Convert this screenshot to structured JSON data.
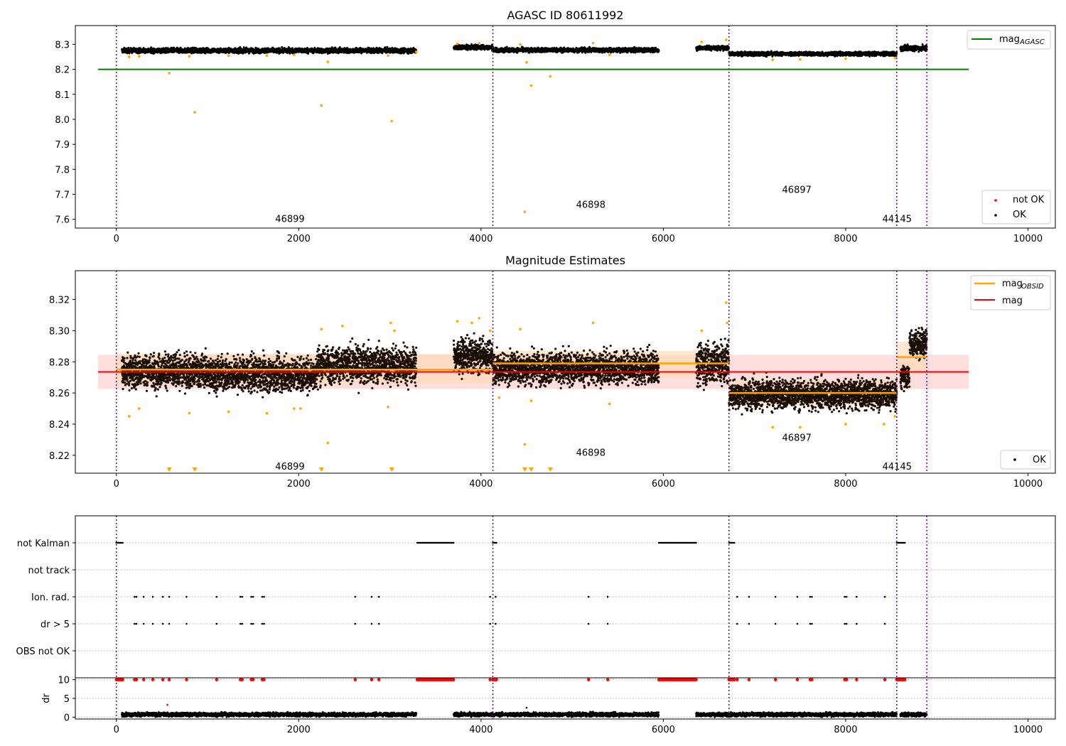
{
  "colors": {
    "ok": "#000000",
    "not_ok": "#ff0000",
    "orange": "#ffa500",
    "green": "#008000",
    "red": "#ff0000",
    "purple": "#800080",
    "band_red": "#ffd6d6",
    "band_orange": "#ffd9b0",
    "grid": "#b0b0b0"
  },
  "chart_data": [
    {
      "type": "scatter",
      "title": "AGASC ID 80611992",
      "xlim": [
        -450,
        10300
      ],
      "ylim": [
        7.565,
        8.375
      ],
      "x_ticks": [
        0,
        2000,
        4000,
        6000,
        8000,
        10000
      ],
      "x_tick_labels": [
        "0",
        "2000",
        "4000",
        "6000",
        "8000",
        "10000"
      ],
      "y_ticks": [
        7.6,
        7.7,
        7.8,
        7.9,
        8.0,
        8.1,
        8.2,
        8.3
      ],
      "y_tick_labels": [
        "7.6",
        "7.7",
        "7.8",
        "7.9",
        "8.0",
        "8.1",
        "8.2",
        "8.3"
      ],
      "obs_boundaries": [
        0,
        4130,
        6720,
        8560,
        8890
      ],
      "obs_labels": [
        {
          "text": "46899",
          "x": 2060,
          "y": 7.6
        },
        {
          "text": "46898",
          "x": 5360,
          "y": 7.658
        },
        {
          "text": "46897",
          "x": 7620,
          "y": 7.717
        },
        {
          "text": "44145",
          "x": 8720,
          "y": 7.6
        }
      ],
      "segments": [
        {
          "x": [
            60,
            3290
          ],
          "mean": 8.275,
          "spread": 0.012
        },
        {
          "x": [
            3700,
            4130
          ],
          "mean": 8.288,
          "spread": 0.012
        },
        {
          "x": [
            4130,
            5950
          ],
          "mean": 8.277,
          "spread": 0.011
        },
        {
          "x": [
            6360,
            6720
          ],
          "mean": 8.285,
          "spread": 0.011
        },
        {
          "x": [
            6720,
            8560
          ],
          "mean": 8.262,
          "spread": 0.01
        },
        {
          "x": [
            8600,
            8890
          ],
          "mean": 8.285,
          "spread": 0.014
        }
      ],
      "hlines": [
        {
          "name": "mag_AGASC",
          "y": 8.2,
          "x": [
            -200,
            9350
          ],
          "color": "#008000"
        }
      ],
      "orange_points": [
        [
          580,
          8.185
        ],
        [
          860,
          8.028
        ],
        [
          2250,
          8.055
        ],
        [
          2320,
          8.23
        ],
        [
          3020,
          7.993
        ],
        [
          4480,
          7.63
        ],
        [
          4500,
          8.228
        ],
        [
          4550,
          8.135
        ],
        [
          4760,
          8.172
        ],
        [
          140,
          8.25
        ],
        [
          250,
          8.252
        ],
        [
          800,
          8.252
        ],
        [
          1230,
          8.255
        ],
        [
          1650,
          8.255
        ],
        [
          1950,
          8.258
        ],
        [
          2980,
          8.255
        ],
        [
          3290,
          8.27
        ],
        [
          3740,
          8.302
        ],
        [
          3980,
          8.305
        ],
        [
          4430,
          8.3
        ],
        [
          5230,
          8.305
        ],
        [
          5410,
          8.258
        ],
        [
          6420,
          8.31
        ],
        [
          6690,
          8.318
        ],
        [
          7200,
          8.238
        ],
        [
          7500,
          8.24
        ],
        [
          8000,
          8.242
        ],
        [
          8540,
          8.245
        ]
      ],
      "legend_top": {
        "items": [
          {
            "label": "mag",
            "sub": "AGASC",
            "color": "#008000"
          }
        ],
        "placement": "top-right"
      },
      "legend_bottom": {
        "items": [
          {
            "label": "not OK",
            "color": "#ff0000"
          },
          {
            "label": "OK",
            "color": "#000000"
          }
        ],
        "placement": "bottom-right"
      }
    },
    {
      "type": "scatter",
      "title": "Magnitude Estimates",
      "xlim": [
        -450,
        10300
      ],
      "ylim": [
        8.2085,
        8.3385
      ],
      "x_ticks": [
        0,
        2000,
        4000,
        6000,
        8000,
        10000
      ],
      "x_tick_labels": [
        "0",
        "2000",
        "4000",
        "6000",
        "8000",
        "10000"
      ],
      "y_ticks": [
        8.22,
        8.24,
        8.26,
        8.28,
        8.3,
        8.32
      ],
      "y_tick_labels": [
        "8.22",
        "8.24",
        "8.26",
        "8.28",
        "8.30",
        "8.32"
      ],
      "obs_boundaries": [
        0,
        4130,
        6720,
        8560,
        8890
      ],
      "obs_labels": [
        {
          "text": "46899",
          "x": 2060,
          "y": 8.2125
        },
        {
          "text": "46898",
          "x": 5360,
          "y": 8.2215
        },
        {
          "text": "46897",
          "x": 7620,
          "y": 8.231
        },
        {
          "text": "44145",
          "x": 8720,
          "y": 8.2125
        }
      ],
      "mag_band": {
        "y": [
          8.2625,
          8.2845
        ],
        "x": [
          -200,
          9350
        ],
        "color": "#ffd6d6"
      },
      "obsid_bands": [
        {
          "x": [
            0,
            4130
          ],
          "y": [
            8.266,
            8.285
          ]
        },
        {
          "x": [
            4130,
            6720
          ],
          "y": [
            8.27,
            8.287
          ]
        },
        {
          "x": [
            6720,
            8560
          ],
          "y": [
            8.252,
            8.268
          ]
        },
        {
          "x": [
            8560,
            8890
          ],
          "y": [
            8.273,
            8.293
          ]
        }
      ],
      "obsid_lines": [
        {
          "x": [
            0,
            4130
          ],
          "y": 8.275
        },
        {
          "x": [
            4130,
            6720
          ],
          "y": 8.279
        },
        {
          "x": [
            6720,
            8560
          ],
          "y": 8.26
        },
        {
          "x": [
            8560,
            8890
          ],
          "y": 8.283
        }
      ],
      "mag_line": {
        "y": 8.2735,
        "x": [
          -200,
          9350
        ]
      },
      "segments": [
        {
          "x": [
            60,
            1000
          ],
          "mean": 8.274,
          "spread": 0.0075
        },
        {
          "x": [
            1000,
            2200
          ],
          "mean": 8.272,
          "spread": 0.0075
        },
        {
          "x": [
            2200,
            3290
          ],
          "mean": 8.278,
          "spread": 0.008
        },
        {
          "x": [
            3700,
            4130
          ],
          "mean": 8.284,
          "spread": 0.007
        },
        {
          "x": [
            4130,
            5950
          ],
          "mean": 8.276,
          "spread": 0.007
        },
        {
          "x": [
            6360,
            6720
          ],
          "mean": 8.279,
          "spread": 0.009
        },
        {
          "x": [
            6720,
            8560
          ],
          "mean": 8.259,
          "spread": 0.0065
        },
        {
          "x": [
            8600,
            8700
          ],
          "mean": 8.27,
          "spread": 0.005
        },
        {
          "x": [
            8700,
            8890
          ],
          "mean": 8.292,
          "spread": 0.006
        }
      ],
      "orange_points": [
        [
          140,
          8.245
        ],
        [
          250,
          8.25
        ],
        [
          800,
          8.247
        ],
        [
          1230,
          8.248
        ],
        [
          1650,
          8.247
        ],
        [
          1950,
          8.25
        ],
        [
          2020,
          8.25
        ],
        [
          2320,
          8.228
        ],
        [
          2250,
          8.301
        ],
        [
          2480,
          8.303
        ],
        [
          2980,
          8.251
        ],
        [
          3010,
          8.305
        ],
        [
          3050,
          8.3
        ],
        [
          3740,
          8.306
        ],
        [
          3900,
          8.305
        ],
        [
          3980,
          8.308
        ],
        [
          4100,
          8.3
        ],
        [
          4200,
          8.257
        ],
        [
          4430,
          8.301
        ],
        [
          4480,
          8.227
        ],
        [
          4550,
          8.255
        ],
        [
          5230,
          8.305
        ],
        [
          5410,
          8.253
        ],
        [
          6420,
          8.3
        ],
        [
          6690,
          8.318
        ],
        [
          6700,
          8.305
        ],
        [
          7200,
          8.238
        ],
        [
          7500,
          8.238
        ],
        [
          8000,
          8.24
        ],
        [
          8420,
          8.24
        ],
        [
          8540,
          8.245
        ]
      ],
      "low_markers": [
        580,
        860,
        2250,
        3020,
        4480,
        4550,
        4760
      ],
      "legend_top": {
        "items": [
          {
            "label": "mag",
            "sub": "OBSID",
            "color": "#ffa500"
          },
          {
            "label": "mag",
            "sub": "",
            "color": "#ff0000"
          }
        ],
        "placement": "top-right"
      },
      "legend_bottom": {
        "items": [
          {
            "label": "OK",
            "color": "#000000"
          }
        ],
        "placement": "bottom-right"
      }
    },
    {
      "type": "scatter",
      "title": "",
      "xlim": [
        -450,
        10300
      ],
      "x_ticks": [
        0,
        2000,
        4000,
        6000,
        8000,
        10000
      ],
      "x_tick_labels": [
        "0",
        "2000",
        "4000",
        "6000",
        "8000",
        "10000"
      ],
      "flag_rows": [
        "not Kalman",
        "not track",
        "Ion. rad.",
        "dr > 5",
        "OBS not OK"
      ],
      "obs_boundaries": [
        0,
        4130,
        6720,
        8560,
        8890
      ],
      "not_kalman_ranges": [
        [
          0,
          70
        ],
        [
          3300,
          3700
        ],
        [
          4130,
          4170
        ],
        [
          5950,
          6360
        ],
        [
          6720,
          6780
        ],
        [
          8560,
          8650
        ]
      ],
      "ion_events": [
        200,
        220,
        300,
        400,
        510,
        580,
        770,
        1100,
        1360,
        1380,
        1480,
        1500,
        1600,
        1620,
        2620,
        2800,
        2880,
        4100,
        4160,
        5180,
        5390,
        6810,
        6940,
        7230,
        7470,
        7610,
        7630,
        7990,
        8010,
        8120,
        8430
      ],
      "dr_ylim": [
        -0.5,
        10.5
      ],
      "dr_ticks": [
        0,
        5,
        10
      ],
      "dr_tick_labels": [
        "0",
        "5",
        "10"
      ],
      "dr_label": "dr",
      "dr_segments": [
        [
          60,
          3290
        ],
        [
          3700,
          4130
        ],
        [
          4130,
          5950
        ],
        [
          6360,
          6720
        ],
        [
          6720,
          8560
        ],
        [
          8600,
          8890
        ]
      ],
      "dr_outliers": [
        [
          560,
          3.3
        ],
        [
          4500,
          2.5
        ]
      ]
    }
  ]
}
